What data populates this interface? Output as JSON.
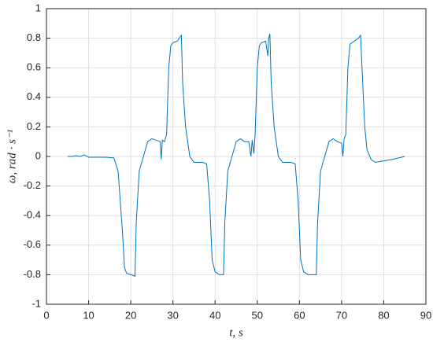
{
  "chart_data": {
    "type": "line",
    "x_label": "t, s",
    "y_label": "ω, rad · s⁻¹",
    "xlim": [
      0,
      90
    ],
    "xticks": [
      0,
      10,
      20,
      30,
      40,
      50,
      60,
      70,
      80,
      90
    ],
    "ylim": [
      -1,
      1
    ],
    "yticks": [
      -1,
      -0.8,
      -0.6,
      -0.4,
      -0.2,
      0,
      0.2,
      0.4,
      0.6,
      0.8,
      1
    ],
    "grid": true,
    "series": [
      {
        "color": "#0072bd",
        "x": [
          5,
          6,
          7,
          8,
          9,
          10,
          12,
          14,
          16,
          17,
          18,
          18.5,
          19,
          20,
          21,
          21.3,
          22,
          23,
          24,
          25,
          26,
          27,
          27.2,
          27.5,
          28,
          28.5,
          29,
          29.5,
          30,
          31,
          32,
          32.3,
          33,
          34,
          35,
          37,
          38,
          38.7,
          39.3,
          40,
          41,
          42,
          42.3,
          43,
          44,
          45,
          46,
          47,
          48,
          48.5,
          48.8,
          49.2,
          49.5,
          50,
          50.5,
          51,
          52,
          52.5,
          52.7,
          53,
          53.3,
          54,
          55,
          56,
          58,
          59,
          59.7,
          60.3,
          61,
          62,
          63,
          64,
          64.3,
          65,
          66,
          67,
          68,
          69,
          70,
          70.3,
          70.6,
          71,
          71.5,
          72,
          73,
          74,
          74.5,
          75,
          75.5,
          76,
          77,
          78,
          80,
          82,
          85
        ],
        "values": [
          0.0,
          0.0,
          0.005,
          0.0,
          0.01,
          -0.005,
          -0.005,
          -0.005,
          -0.01,
          -0.1,
          -0.5,
          -0.75,
          -0.79,
          -0.8,
          -0.81,
          -0.45,
          -0.1,
          0.0,
          0.1,
          0.12,
          0.11,
          0.1,
          -0.02,
          0.11,
          0.1,
          0.15,
          0.6,
          0.75,
          0.77,
          0.78,
          0.82,
          0.5,
          0.2,
          0.0,
          -0.04,
          -0.04,
          -0.05,
          -0.3,
          -0.7,
          -0.78,
          -0.8,
          -0.8,
          -0.45,
          -0.1,
          0.0,
          0.1,
          0.12,
          0.1,
          0.1,
          0.0,
          0.11,
          0.02,
          0.15,
          0.6,
          0.75,
          0.77,
          0.78,
          0.68,
          0.8,
          0.83,
          0.5,
          0.2,
          0.0,
          -0.04,
          -0.04,
          -0.05,
          -0.3,
          -0.7,
          -0.78,
          -0.8,
          -0.8,
          -0.8,
          -0.45,
          -0.1,
          0.0,
          0.1,
          0.12,
          0.1,
          0.09,
          0.0,
          0.12,
          0.15,
          0.6,
          0.76,
          0.78,
          0.8,
          0.82,
          0.5,
          0.2,
          0.05,
          -0.02,
          -0.04,
          -0.03,
          -0.02,
          0.0
        ]
      }
    ]
  }
}
